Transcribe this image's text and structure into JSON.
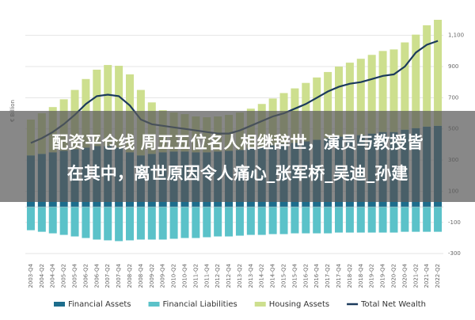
{
  "chart_data": {
    "type": "bar",
    "stacked": true,
    "y_label": "€ Billion",
    "categories": [
      "2003-Q4",
      "2004-Q2",
      "2004-Q4",
      "2005-Q2",
      "2005-Q4",
      "2006-Q2",
      "2006-Q4",
      "2007-Q2",
      "2007-Q4",
      "2008-Q2",
      "2008-Q4",
      "2009-Q2",
      "2009-Q4",
      "2010-Q2",
      "2010-Q4",
      "2011-Q2",
      "2011-Q4",
      "2012-Q2",
      "2012-Q4",
      "2013-Q2",
      "2013-Q4",
      "2014-Q2",
      "2014-Q4",
      "2015-Q2",
      "2015-Q4",
      "2016-Q2",
      "2016-Q4",
      "2017-Q2",
      "2017-Q4",
      "2018-Q2",
      "2018-Q4",
      "2019-Q2",
      "2019-Q4",
      "2020-Q2",
      "2020-Q4",
      "2021-Q2",
      "2021-Q4",
      "2022-Q2"
    ],
    "series": [
      {
        "name": "Financial Assets",
        "type": "bar",
        "color": "#1d6d8c",
        "values": [
          330,
          340,
          350,
          360,
          370,
          380,
          390,
          390,
          380,
          350,
          330,
          340,
          350,
          355,
          355,
          350,
          350,
          355,
          360,
          365,
          375,
          385,
          395,
          405,
          410,
          420,
          430,
          440,
          450,
          455,
          460,
          470,
          480,
          480,
          495,
          505,
          515,
          520
        ]
      },
      {
        "name": "Financial Liabilities",
        "type": "bar",
        "color": "#5bc2c9",
        "values": [
          -150,
          -160,
          -170,
          -180,
          -190,
          -200,
          -210,
          -215,
          -220,
          -215,
          -210,
          -210,
          -210,
          -205,
          -200,
          -200,
          -195,
          -190,
          -190,
          -185,
          -180,
          -180,
          -175,
          -175,
          -170,
          -170,
          -170,
          -170,
          -165,
          -165,
          -165,
          -165,
          -165,
          -165,
          -160,
          -160,
          -160,
          -160
        ]
      },
      {
        "name": "Housing Assets",
        "type": "bar",
        "color": "#cddf8e",
        "values": [
          230,
          260,
          290,
          330,
          380,
          440,
          490,
          520,
          525,
          500,
          420,
          330,
          270,
          250,
          240,
          230,
          225,
          225,
          230,
          240,
          255,
          275,
          300,
          325,
          350,
          375,
          400,
          425,
          450,
          470,
          490,
          505,
          520,
          530,
          560,
          600,
          650,
          680
        ]
      },
      {
        "name": "Total Net Wealth",
        "type": "line",
        "color": "#1b3a5c",
        "values": [
          410,
          440,
          480,
          530,
          590,
          660,
          710,
          720,
          710,
          650,
          560,
          530,
          520,
          510,
          500,
          490,
          480,
          470,
          470,
          490,
          520,
          550,
          580,
          600,
          630,
          660,
          700,
          740,
          770,
          790,
          800,
          820,
          840,
          850,
          900,
          990,
          1040,
          1065
        ]
      }
    ],
    "ylim": [
      -350,
      1200
    ],
    "yticks": [
      -300,
      -100,
      100,
      300,
      500,
      700,
      900,
      {
        "value": 1100,
        "label": "1,100"
      }
    ],
    "grid": true,
    "legend": "bottom"
  },
  "banner": {
    "lines": [
      "配资平仓线 周五五位名人相继辞世，演员与教授皆",
      "在其中，离世原因令人痛心_张军桥_吴迪_孙建"
    ]
  }
}
